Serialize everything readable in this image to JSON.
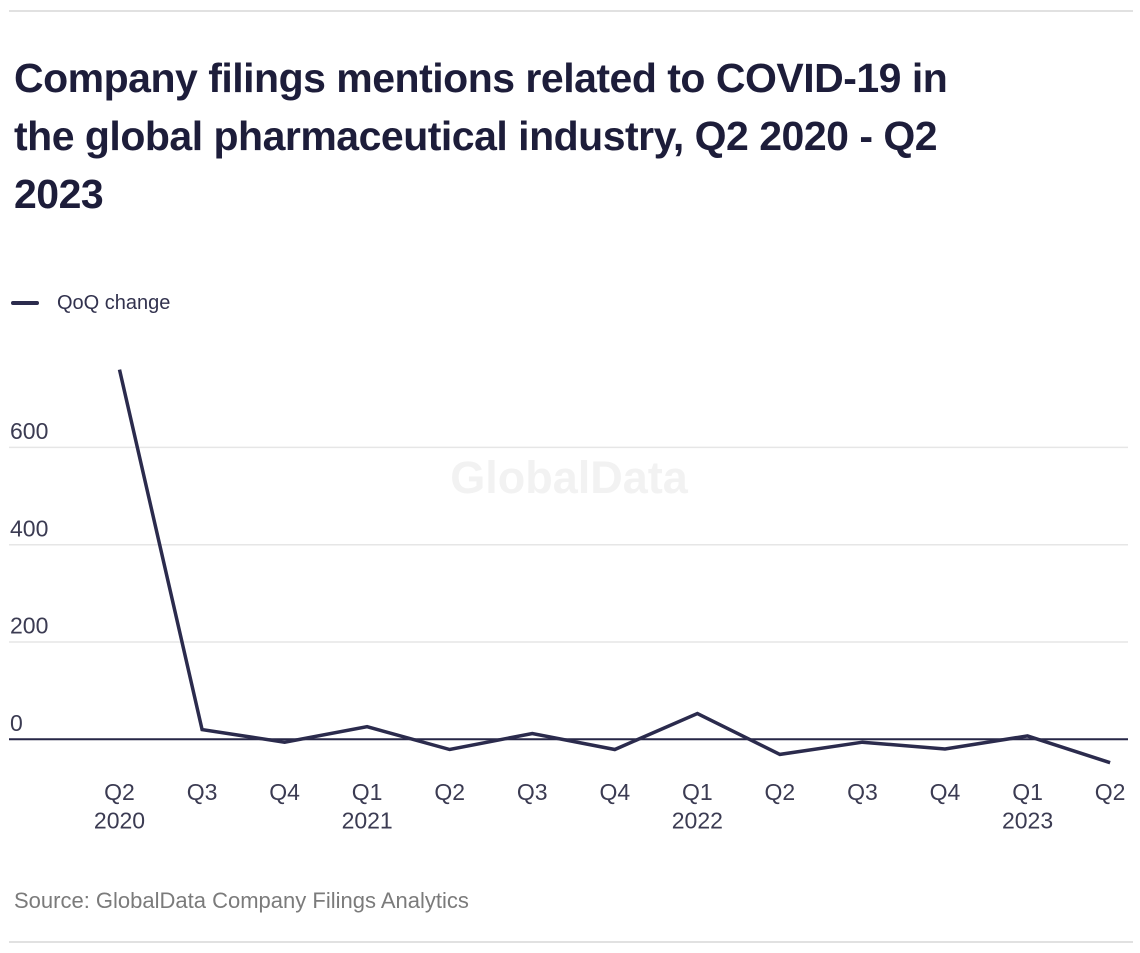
{
  "header": {
    "title": "Company filings mentions related to COVID-19 in the global pharmaceutical industry, Q2 2020 - Q2 2023",
    "title_lines": [
      "Company filings mentions related to COVID-19 in",
      "the global pharmaceutical industry, Q2 2020 - Q2",
      "2023"
    ]
  },
  "legend": {
    "label": "QoQ change",
    "line_color": "#2b2b4d",
    "position": "top-left"
  },
  "watermark": {
    "text": "GlobalData",
    "color": "#f2f2f2"
  },
  "chart_data": {
    "type": "line",
    "title": "Company filings mentions related to COVID-19 in the global pharmaceutical industry, Q2 2020 - Q2 2023",
    "categories": [
      "Q2 2020",
      "Q3 2020",
      "Q4 2020",
      "Q1 2021",
      "Q2 2021",
      "Q3 2021",
      "Q4 2021",
      "Q1 2022",
      "Q2 2022",
      "Q3 2022",
      "Q4 2022",
      "Q1 2023",
      "Q2 2023"
    ],
    "x_tick_labels": [
      {
        "quarter": "Q2",
        "year": "2020"
      },
      {
        "quarter": "Q3",
        "year": ""
      },
      {
        "quarter": "Q4",
        "year": ""
      },
      {
        "quarter": "Q1",
        "year": "2021"
      },
      {
        "quarter": "Q2",
        "year": ""
      },
      {
        "quarter": "Q3",
        "year": ""
      },
      {
        "quarter": "Q4",
        "year": ""
      },
      {
        "quarter": "Q1",
        "year": "2022"
      },
      {
        "quarter": "Q2",
        "year": ""
      },
      {
        "quarter": "Q3",
        "year": ""
      },
      {
        "quarter": "Q4",
        "year": ""
      },
      {
        "quarter": "Q1",
        "year": "2023"
      },
      {
        "quarter": "Q2",
        "year": ""
      }
    ],
    "series": [
      {
        "name": "QoQ change",
        "color": "#2b2b4d",
        "values": [
          760,
          20,
          -6,
          26,
          -21,
          12,
          -21,
          53,
          -31,
          -6,
          -20,
          7,
          -48
        ]
      }
    ],
    "y_ticks": [
      0,
      200,
      400,
      600
    ],
    "ylim": [
      -80,
      800
    ],
    "grid": "horizontal",
    "legend_position": "top-left",
    "zero_baseline": true
  },
  "footer": {
    "source": "Source: GlobalData Company Filings Analytics"
  },
  "colors": {
    "title": "#1d1d3a",
    "line": "#2b2b4d",
    "axis_label": "#3b3b52",
    "gridline": "#e6e6e6",
    "zero_line": "#262647",
    "source_text": "#7b7b7b",
    "divider": "#e1e1e1",
    "watermark": "#f2f2f2",
    "background": "#ffffff"
  }
}
